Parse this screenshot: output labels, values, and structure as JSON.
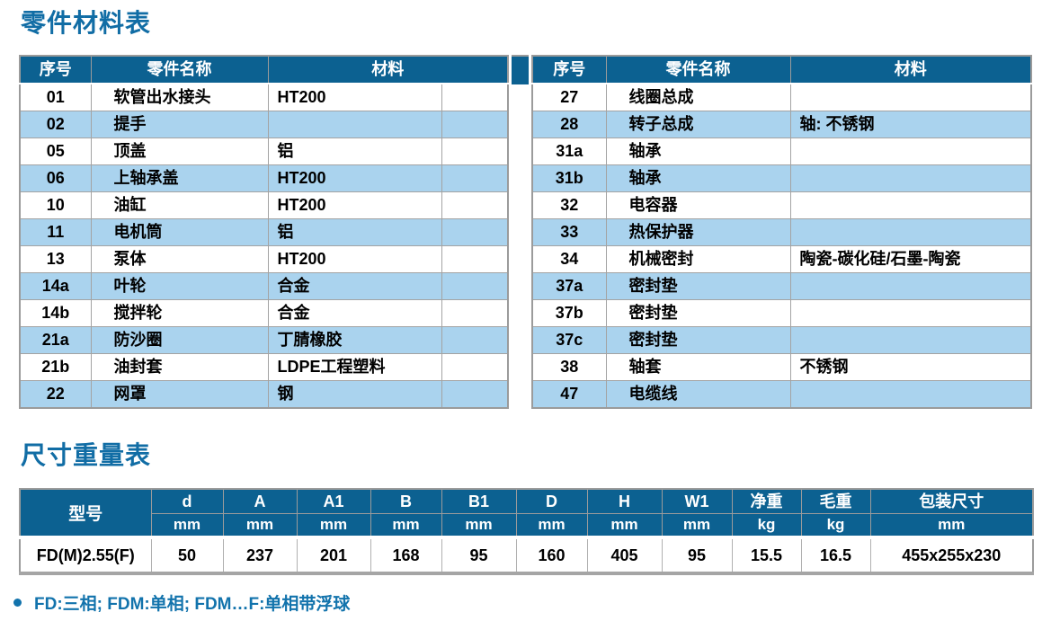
{
  "titles": {
    "parts": "零件材料表",
    "size": "尺寸重量表"
  },
  "colors": {
    "header_blue": "#0c6191",
    "stripe_blue": "#aad3ee",
    "title_blue": "#116da5",
    "border_grey": "#9b9b9b"
  },
  "parts_table": {
    "headers": [
      "序号",
      "零件名称",
      "材料"
    ],
    "left_rows": [
      [
        "01",
        "软管出水接头",
        "HT200"
      ],
      [
        "02",
        "提手",
        ""
      ],
      [
        "05",
        "顶盖",
        "铝"
      ],
      [
        "06",
        "上轴承盖",
        "HT200"
      ],
      [
        "10",
        "油缸",
        "HT200"
      ],
      [
        "11",
        "电机筒",
        "铝"
      ],
      [
        "13",
        "泵体",
        "HT200"
      ],
      [
        "14a",
        "叶轮",
        "合金"
      ],
      [
        "14b",
        "搅拌轮",
        "合金"
      ],
      [
        "21a",
        "防沙圈",
        "丁腈橡胶"
      ],
      [
        "21b",
        "油封套",
        "LDPE工程塑料"
      ],
      [
        "22",
        "网罩",
        "钢"
      ]
    ],
    "right_rows": [
      [
        "27",
        "线圈总成",
        ""
      ],
      [
        "28",
        "转子总成",
        "轴: 不锈钢"
      ],
      [
        "31a",
        "轴承",
        ""
      ],
      [
        "31b",
        "轴承",
        ""
      ],
      [
        "32",
        "电容器",
        ""
      ],
      [
        "33",
        "热保护器",
        ""
      ],
      [
        "34",
        "机械密封",
        "陶瓷-碳化硅/石墨-陶瓷"
      ],
      [
        "37a",
        "密封垫",
        ""
      ],
      [
        "37b",
        "密封垫",
        ""
      ],
      [
        "37c",
        "密封垫",
        ""
      ],
      [
        "38",
        "轴套",
        "不锈钢"
      ],
      [
        "47",
        "电缆线",
        ""
      ]
    ]
  },
  "size_table": {
    "model_header": "型号",
    "columns": [
      {
        "label": "d",
        "unit": "mm"
      },
      {
        "label": "A",
        "unit": "mm"
      },
      {
        "label": "A1",
        "unit": "mm"
      },
      {
        "label": "B",
        "unit": "mm"
      },
      {
        "label": "B1",
        "unit": "mm"
      },
      {
        "label": "D",
        "unit": "mm"
      },
      {
        "label": "H",
        "unit": "mm"
      },
      {
        "label": "W1",
        "unit": "mm"
      },
      {
        "label": "净重",
        "unit": "kg"
      },
      {
        "label": "毛重",
        "unit": "kg"
      },
      {
        "label": "包装尺寸",
        "unit": "mm"
      }
    ],
    "row": {
      "model": "FD(M)2.55(F)",
      "values": [
        "50",
        "237",
        "201",
        "168",
        "95",
        "160",
        "405",
        "95",
        "15.5",
        "16.5",
        "455x255x230"
      ]
    }
  },
  "footnote": "FD:三相; FDM:单相; FDM…F:单相带浮球"
}
